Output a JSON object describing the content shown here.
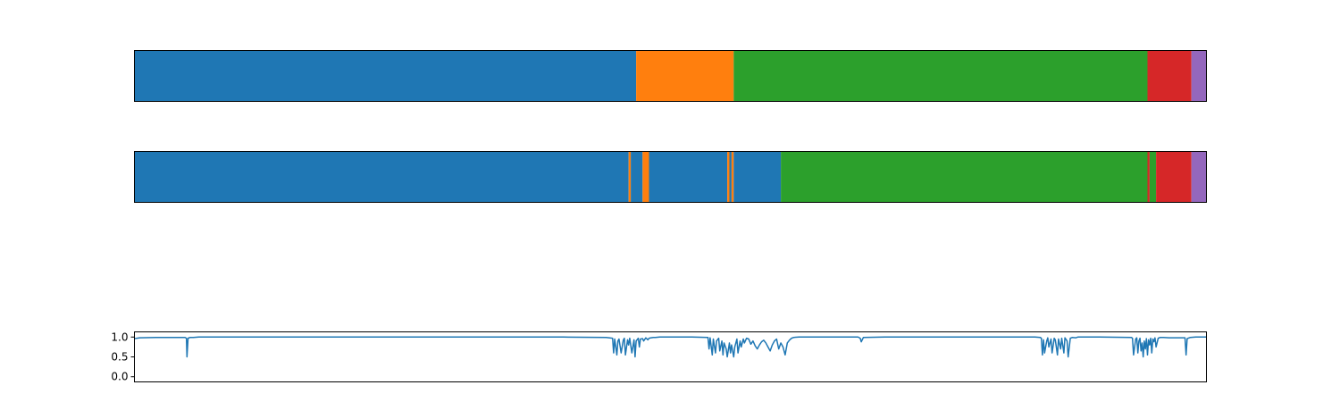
{
  "chart_data": [
    {
      "type": "bar",
      "orientation": "horizontal-segment-strip",
      "title": "",
      "segments": [
        {
          "label": "seg-1",
          "color": "#1f77b4",
          "start": 0,
          "end": 0.468
        },
        {
          "label": "seg-2",
          "color": "#ff7f0e",
          "start": 0.468,
          "end": 0.559
        },
        {
          "label": "seg-3",
          "color": "#2ca02c",
          "start": 0.559,
          "end": 0.945
        },
        {
          "label": "seg-4",
          "color": "#d62728",
          "start": 0.945,
          "end": 0.986
        },
        {
          "label": "seg-5",
          "color": "#9467bd",
          "start": 0.986,
          "end": 1.0
        }
      ]
    },
    {
      "type": "bar",
      "orientation": "horizontal-segment-strip",
      "title": "",
      "segments": [
        {
          "label": "seg-1",
          "color": "#1f77b4",
          "start": 0,
          "end": 0.461
        },
        {
          "label": "seg-2",
          "color": "#ff7f0e",
          "start": 0.461,
          "end": 0.463
        },
        {
          "label": "seg-3",
          "color": "#1f77b4",
          "start": 0.463,
          "end": 0.474
        },
        {
          "label": "seg-4",
          "color": "#ff7f0e",
          "start": 0.474,
          "end": 0.48
        },
        {
          "label": "seg-5",
          "color": "#1f77b4",
          "start": 0.48,
          "end": 0.553
        },
        {
          "label": "seg-6",
          "color": "#ff7f0e",
          "start": 0.553,
          "end": 0.555
        },
        {
          "label": "seg-7",
          "color": "#1f77b4",
          "start": 0.555,
          "end": 0.557
        },
        {
          "label": "seg-8",
          "color": "#ff7f0e",
          "start": 0.557,
          "end": 0.559
        },
        {
          "label": "seg-9",
          "color": "#1f77b4",
          "start": 0.559,
          "end": 0.603
        },
        {
          "label": "seg-10",
          "color": "#2ca02c",
          "start": 0.603,
          "end": 0.945
        },
        {
          "label": "seg-11",
          "color": "#d62728",
          "start": 0.945,
          "end": 0.947
        },
        {
          "label": "seg-12",
          "color": "#2ca02c",
          "start": 0.947,
          "end": 0.953
        },
        {
          "label": "seg-13",
          "color": "#d62728",
          "start": 0.953,
          "end": 0.986
        },
        {
          "label": "seg-14",
          "color": "#9467bd",
          "start": 0.986,
          "end": 1.0
        }
      ]
    },
    {
      "type": "line",
      "title": "",
      "xlabel": "",
      "ylabel": "",
      "ylim": [
        -0.13,
        1.13
      ],
      "y_ticks": [
        "1.0",
        "0.5",
        "0.0"
      ],
      "y_tick_values": [
        1.0,
        0.5,
        0.0
      ],
      "color": "#1f77b4",
      "series": [
        {
          "x": [
            0,
            0.005,
            0.01,
            0.02,
            0.047,
            0.0485,
            0.049,
            0.05,
            0.052,
            0.055,
            0.06,
            0.1,
            0.2,
            0.3,
            0.4,
            0.44,
            0.446,
            0.447,
            0.448,
            0.45,
            0.451,
            0.452,
            0.454,
            0.456,
            0.457,
            0.458,
            0.46,
            0.461,
            0.462,
            0.464,
            0.466,
            0.467,
            0.468,
            0.47,
            0.471,
            0.472,
            0.474,
            0.475,
            0.477,
            0.479,
            0.48,
            0.482,
            0.484,
            0.486,
            0.49,
            0.5,
            0.52,
            0.535,
            0.536,
            0.537,
            0.539,
            0.54,
            0.542,
            0.543,
            0.545,
            0.546,
            0.548,
            0.549,
            0.55,
            0.552,
            0.553,
            0.555,
            0.556,
            0.557,
            0.559,
            0.56,
            0.562,
            0.563,
            0.565,
            0.566,
            0.568,
            0.569,
            0.571,
            0.573,
            0.575,
            0.577,
            0.579,
            0.581,
            0.583,
            0.585,
            0.587,
            0.589,
            0.591,
            0.593,
            0.595,
            0.597,
            0.599,
            0.601,
            0.603,
            0.605,
            0.607,
            0.609,
            0.611,
            0.613,
            0.615,
            0.62,
            0.65,
            0.675,
            0.677,
            0.678,
            0.68,
            0.7,
            0.75,
            0.8,
            0.84,
            0.845,
            0.846,
            0.847,
            0.848,
            0.849,
            0.851,
            0.852,
            0.853,
            0.855,
            0.856,
            0.858,
            0.859,
            0.861,
            0.862,
            0.864,
            0.865,
            0.867,
            0.868,
            0.87,
            0.871,
            0.873,
            0.875,
            0.878,
            0.88,
            0.9,
            0.93,
            0.931,
            0.932,
            0.934,
            0.935,
            0.936,
            0.937,
            0.938,
            0.939,
            0.94,
            0.941,
            0.942,
            0.943,
            0.944,
            0.945,
            0.946,
            0.947,
            0.948,
            0.949,
            0.95,
            0.951,
            0.952,
            0.953,
            0.955,
            0.957,
            0.96,
            0.965,
            0.98,
            0.981,
            0.982,
            0.983,
            0.985,
            0.99,
            1.0
          ],
          "y": [
            0.96,
            0.98,
            0.985,
            0.99,
            0.99,
            0.97,
            0.5,
            0.97,
            0.99,
            0.99,
            1.0,
            1.0,
            1.0,
            1.0,
            1.0,
            0.99,
            0.97,
            0.6,
            0.95,
            0.55,
            0.9,
            0.95,
            0.6,
            0.92,
            0.97,
            0.55,
            0.93,
            0.8,
            0.97,
            0.6,
            0.93,
            0.5,
            0.9,
            0.97,
            0.75,
            0.95,
            0.96,
            0.9,
            0.98,
            0.93,
            0.97,
            0.98,
            0.99,
            0.99,
            1.0,
            1.0,
            1.0,
            0.99,
            0.7,
            0.98,
            0.55,
            0.95,
            0.6,
            0.9,
            0.97,
            0.65,
            0.9,
            0.55,
            0.85,
            0.7,
            0.5,
            0.85,
            0.6,
            0.8,
            0.5,
            0.75,
            0.95,
            0.6,
            0.9,
            0.75,
            0.95,
            0.85,
            0.97,
            0.95,
            0.82,
            0.9,
            0.78,
            0.7,
            0.8,
            0.88,
            0.92,
            0.85,
            0.75,
            0.65,
            0.8,
            0.9,
            0.95,
            0.7,
            0.85,
            0.75,
            0.55,
            0.85,
            0.92,
            0.97,
            0.99,
            1.0,
            1.0,
            1.0,
            0.97,
            0.88,
            0.99,
            1.0,
            1.0,
            1.0,
            1.0,
            0.99,
            0.97,
            0.55,
            0.93,
            0.6,
            0.9,
            0.98,
            0.75,
            0.95,
            0.6,
            0.97,
            0.93,
            0.55,
            0.95,
            0.7,
            0.97,
            0.6,
            0.98,
            0.9,
            0.5,
            0.97,
            0.99,
            0.98,
            1.0,
            1.0,
            0.99,
            0.97,
            0.55,
            0.95,
            0.98,
            0.6,
            0.9,
            0.97,
            0.65,
            0.85,
            0.5,
            0.9,
            0.7,
            0.96,
            0.55,
            0.93,
            0.8,
            0.97,
            0.6,
            0.95,
            0.88,
            0.98,
            0.75,
            0.97,
            0.99,
            0.99,
            0.98,
            0.98,
            0.55,
            0.96,
            0.97,
            0.99,
            1.0,
            1.0
          ]
        }
      ]
    }
  ]
}
